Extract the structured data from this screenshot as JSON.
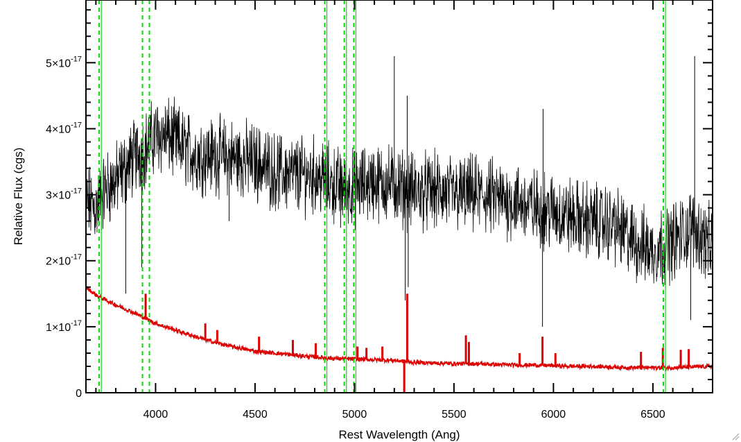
{
  "chart_data": {
    "type": "line",
    "title": "",
    "xlabel": "Rest Wavelength (Ang)",
    "ylabel": "Relative Flux (cgs)",
    "xlim": [
      3650,
      6800
    ],
    "ylim": [
      0,
      5.95e-17
    ],
    "x_ticks": [
      4000,
      4500,
      5000,
      5500,
      6000,
      6500
    ],
    "x_tick_labels": [
      "4000",
      "4500",
      "5000",
      "5500",
      "6000",
      "6500"
    ],
    "y_ticks": [
      0,
      1e-17,
      2e-17,
      3e-17,
      4e-17,
      5e-17
    ],
    "y_tick_labels": [
      {
        "mantissa": "0",
        "exponent": ""
      },
      {
        "mantissa": "1×10",
        "exponent": "-17"
      },
      {
        "mantissa": "2×10",
        "exponent": "-17"
      },
      {
        "mantissa": "3×10",
        "exponent": "-17"
      },
      {
        "mantissa": "4×10",
        "exponent": "-17"
      },
      {
        "mantissa": "5×10",
        "exponent": "-17"
      }
    ],
    "grid": false,
    "legend": "none",
    "series": [
      {
        "color": "#000000",
        "style": "noisy spectrum",
        "x": [
          3650,
          3700,
          3750,
          3800,
          3850,
          3900,
          3950,
          4000,
          4050,
          4100,
          4200,
          4300,
          4400,
          4500,
          4600,
          4700,
          4800,
          4900,
          5000,
          5100,
          5200,
          5300,
          5400,
          5500,
          5600,
          5700,
          5800,
          5900,
          6000,
          6100,
          6200,
          6300,
          6400,
          6500,
          6600,
          6700,
          6800
        ],
        "y": [
          2.9e-17,
          2.8e-17,
          3.1e-17,
          3.2e-17,
          3.4e-17,
          3.6e-17,
          3.7e-17,
          3.9e-17,
          3.9e-17,
          3.8e-17,
          3.6e-17,
          3.6e-17,
          3.55e-17,
          3.5e-17,
          3.35e-17,
          3.3e-17,
          3.3e-17,
          3.15e-17,
          3.1e-17,
          3.2e-17,
          3.15e-17,
          3.05e-17,
          3.05e-17,
          3e-17,
          3e-17,
          2.95e-17,
          2.9e-17,
          2.8e-17,
          2.75e-17,
          2.65e-17,
          2.6e-17,
          2.55e-17,
          2.3e-17,
          2.15e-17,
          2.3e-17,
          2.5e-17,
          2.2e-17
        ]
      },
      {
        "color": "#dd0000",
        "style": "smooth continuum",
        "x": [
          3650,
          3700,
          3800,
          3900,
          4000,
          4100,
          4200,
          4300,
          4400,
          4500,
          4600,
          4700,
          4800,
          4900,
          5000,
          5100,
          5200,
          5300,
          5400,
          5500,
          5600,
          5700,
          5800,
          5900,
          6000,
          6100,
          6200,
          6300,
          6400,
          6500,
          6600,
          6700,
          6800
        ],
        "y": [
          1.6e-17,
          1.48e-17,
          1.33e-17,
          1.2e-17,
          1.05e-17,
          9.5e-18,
          8.5e-18,
          7.6e-18,
          6.9e-18,
          6.3e-18,
          6e-18,
          5.7e-18,
          5.4e-18,
          5.2e-18,
          5.1e-18,
          5e-18,
          4.9e-18,
          4.6e-18,
          4.5e-18,
          4.4e-18,
          4.4e-18,
          4.3e-18,
          4.2e-18,
          4.2e-18,
          4.1e-18,
          4e-18,
          4e-18,
          3.9e-18,
          3.8e-18,
          3.8e-18,
          3.8e-18,
          3.9e-18,
          4e-18
        ]
      }
    ],
    "black_spikes": [
      {
        "x": 3930,
        "y": 1.9e-17
      },
      {
        "x": 4370,
        "y": 2.6e-17
      },
      {
        "x": 4930,
        "y": 2.5e-17
      },
      {
        "x": 5200,
        "y": 5.1e-17
      },
      {
        "x": 5255,
        "y": 1.4e-17
      },
      {
        "x": 5270,
        "y": 1.6e-17
      },
      {
        "x": 5265,
        "y": 4.5e-17
      },
      {
        "x": 5945,
        "y": 1e-17
      },
      {
        "x": 5948,
        "y": 4.3e-17
      },
      {
        "x": 6690,
        "y": 1.1e-17
      },
      {
        "x": 6710,
        "y": 5.1e-17
      },
      {
        "x": 3850,
        "y": 1.5e-17
      }
    ],
    "red_spikes": [
      {
        "x": 3950,
        "y": 1.5e-17
      },
      {
        "x": 4250,
        "y": 1.05e-17
      },
      {
        "x": 4310,
        "y": 9.5e-18
      },
      {
        "x": 4520,
        "y": 8.5e-18
      },
      {
        "x": 4690,
        "y": 8e-18
      },
      {
        "x": 4805,
        "y": 7.5e-18
      },
      {
        "x": 5015,
        "y": 7e-18
      },
      {
        "x": 5060,
        "y": 6.8e-18
      },
      {
        "x": 5140,
        "y": 7e-18
      },
      {
        "x": 5265,
        "y": 1.5e-17
      },
      {
        "x": 5560,
        "y": 8.7e-18
      },
      {
        "x": 5575,
        "y": 7.7e-18
      },
      {
        "x": 5830,
        "y": 6e-18
      },
      {
        "x": 5945,
        "y": 8.5e-18
      },
      {
        "x": 6010,
        "y": 6e-18
      },
      {
        "x": 6440,
        "y": 6.2e-18
      },
      {
        "x": 6550,
        "y": 6.8e-18
      },
      {
        "x": 6640,
        "y": 6.5e-18
      },
      {
        "x": 6680,
        "y": 6.6e-18
      },
      {
        "x": 5250,
        "y": -3e-18
      }
    ],
    "vertical_lines": {
      "color": "#00dd00",
      "solid": [
        3727,
        4861,
        4959,
        5007,
        6563
      ],
      "dashed": [
        3727,
        3934,
        3969,
        4861,
        4959,
        5007,
        6563
      ]
    }
  }
}
